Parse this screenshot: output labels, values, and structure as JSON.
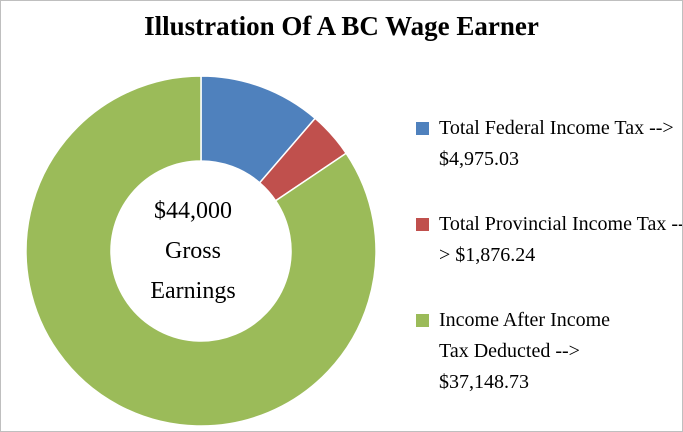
{
  "chart_data": {
    "type": "pie",
    "donut": true,
    "title": "Illustration Of A BC Wage Earner",
    "center_label": "$44,000 Gross Earnings",
    "categories": [
      "Total Federal Income Tax --> $4,975.03",
      "Total Provincial Income Tax --> $1,876.24",
      "Income After Income Tax Deducted --> $37,148.73"
    ],
    "values": [
      4975.03,
      1876.24,
      37148.73
    ],
    "colors": [
      "#4f81bd",
      "#c0504d",
      "#9bbb59"
    ],
    "legend": "right"
  }
}
